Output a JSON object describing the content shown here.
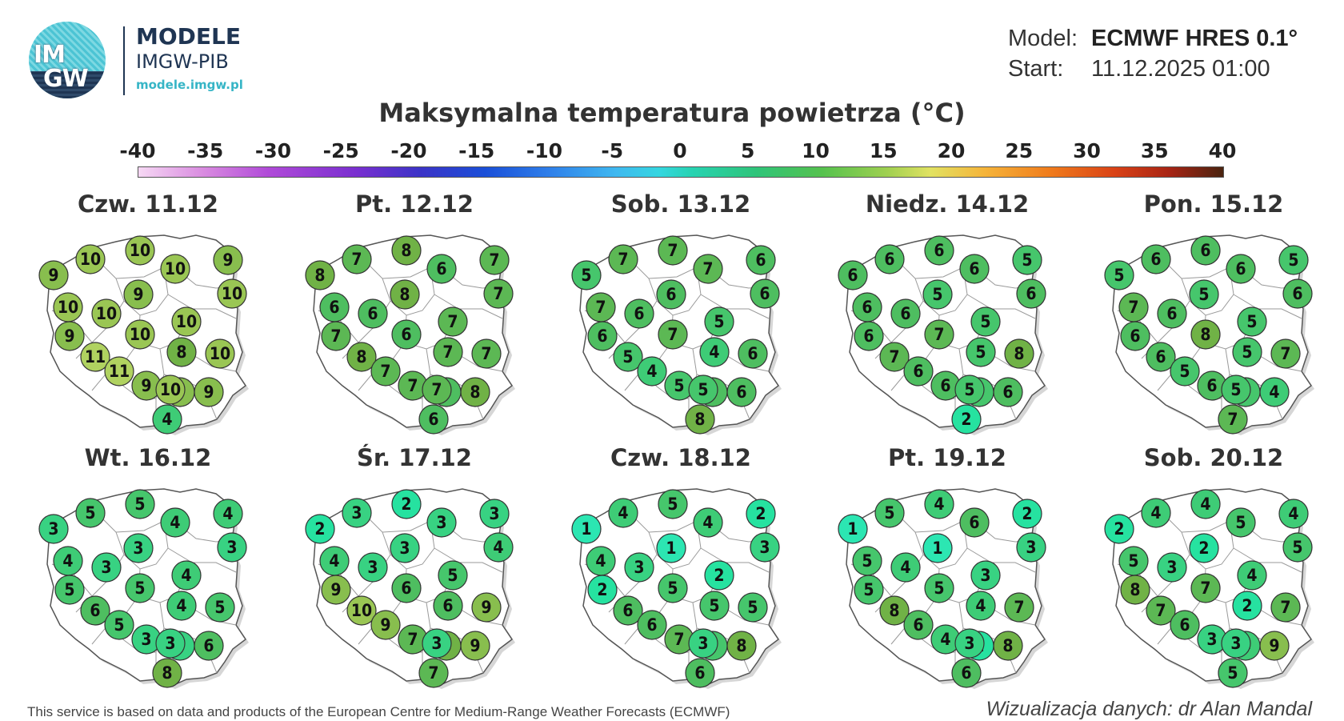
{
  "logo": {
    "line1": "IM",
    "line2": "GW",
    "title": "MODELE",
    "subtitle": "IMGW-PIB",
    "url": "modele.imgw.pl"
  },
  "meta": {
    "model_label": "Model:",
    "model_value": "ECMWF HRES 0.1°",
    "start_label": "Start:",
    "start_value": "11.12.2025 01:00"
  },
  "title": "Maksymalna temperatura powietrza (°C)",
  "scale": {
    "ticks": [
      "-40",
      "-35",
      "-30",
      "-25",
      "-20",
      "-15",
      "-10",
      "-5",
      "0",
      "5",
      "10",
      "15",
      "20",
      "25",
      "30",
      "35",
      "40"
    ],
    "min": -40,
    "max": 40
  },
  "days": [
    {
      "label": "Czw. 11.12",
      "values": [
        10,
        10,
        9,
        9,
        10,
        10,
        9,
        10,
        10,
        10,
        9,
        10,
        10,
        11,
        11,
        9,
        9,
        8,
        9,
        10,
        4
      ]
    },
    {
      "label": "Pt. 12.12",
      "values": [
        7,
        8,
        7,
        8,
        6,
        7,
        8,
        6,
        6,
        7,
        7,
        6,
        7,
        8,
        7,
        7,
        8,
        7,
        6,
        7,
        6
      ]
    },
    {
      "label": "Sob. 13.12",
      "values": [
        7,
        7,
        6,
        5,
        7,
        6,
        6,
        7,
        6,
        5,
        6,
        7,
        6,
        5,
        4,
        5,
        6,
        4,
        6,
        5,
        8
      ]
    },
    {
      "label": "Niedz. 14.12",
      "values": [
        6,
        6,
        5,
        6,
        6,
        6,
        5,
        6,
        6,
        5,
        6,
        7,
        8,
        7,
        6,
        6,
        6,
        5,
        5,
        5,
        2
      ]
    },
    {
      "label": "Pon. 15.12",
      "values": [
        6,
        6,
        5,
        5,
        6,
        6,
        5,
        7,
        6,
        5,
        6,
        8,
        7,
        6,
        5,
        6,
        4,
        5,
        5,
        5,
        7
      ]
    },
    {
      "label": "Wt. 16.12",
      "values": [
        5,
        5,
        4,
        3,
        4,
        3,
        3,
        4,
        3,
        4,
        5,
        5,
        5,
        6,
        5,
        3,
        6,
        4,
        3,
        3,
        8
      ]
    },
    {
      "label": "Śr. 17.12",
      "values": [
        3,
        2,
        3,
        2,
        3,
        4,
        3,
        4,
        3,
        5,
        9,
        6,
        9,
        10,
        9,
        7,
        9,
        6,
        8,
        3,
        7
      ]
    },
    {
      "label": "Czw. 18.12",
      "values": [
        4,
        5,
        2,
        1,
        4,
        3,
        1,
        4,
        3,
        2,
        2,
        5,
        5,
        6,
        6,
        7,
        8,
        5,
        5,
        3,
        6
      ]
    },
    {
      "label": "Pt. 19.12",
      "values": [
        5,
        4,
        2,
        1,
        6,
        3,
        1,
        5,
        4,
        3,
        5,
        5,
        7,
        8,
        6,
        4,
        8,
        4,
        2,
        3,
        6
      ]
    },
    {
      "label": "Sob. 20.12",
      "values": [
        4,
        4,
        4,
        2,
        5,
        5,
        2,
        5,
        3,
        4,
        8,
        7,
        7,
        7,
        6,
        3,
        9,
        2,
        4,
        3,
        5
      ]
    }
  ],
  "footer": {
    "left": "This service is based on data and products of the European Centre for Medium-Range Weather Forecasts (ECMWF)",
    "right": "Wizualizacja danych: dr Alan Mandal"
  }
}
